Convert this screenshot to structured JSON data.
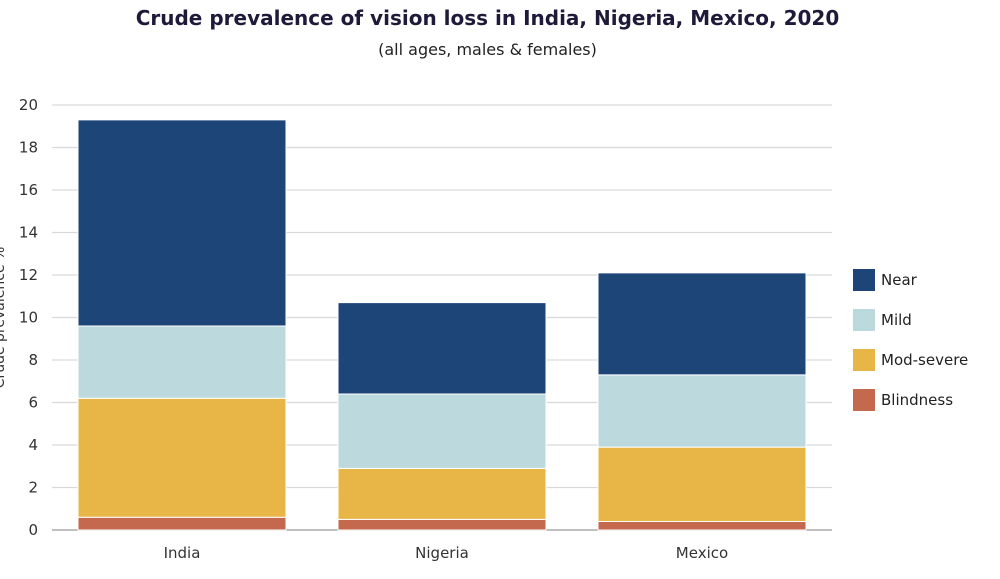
{
  "chart_data": {
    "type": "bar",
    "stacked": true,
    "title": "Crude prevalence of vision loss in India, Nigeria, Mexico, 2020",
    "subtitle": "(all ages, males & females)",
    "ylabel": "Crude prevalence %",
    "xlabel": "",
    "ylim": [
      0,
      20
    ],
    "yticks": [
      0,
      2,
      4,
      6,
      8,
      10,
      12,
      14,
      16,
      18,
      20
    ],
    "grid": true,
    "legend_position": "right",
    "categories": [
      "India",
      "Nigeria",
      "Mexico"
    ],
    "series": [
      {
        "name": "Blindness",
        "color": "#c4694d",
        "values": [
          0.6,
          0.5,
          0.4
        ]
      },
      {
        "name": "Mod-severe",
        "color": "#e8b547",
        "values": [
          5.6,
          2.4,
          3.5
        ]
      },
      {
        "name": "Mild",
        "color": "#bcd9de",
        "values": [
          3.4,
          3.5,
          3.4
        ]
      },
      {
        "name": "Near",
        "color": "#1e4578",
        "values": [
          9.7,
          4.3,
          4.8
        ]
      }
    ],
    "legend_order": [
      "Near",
      "Mild",
      "Mod-severe",
      "Blindness"
    ]
  }
}
